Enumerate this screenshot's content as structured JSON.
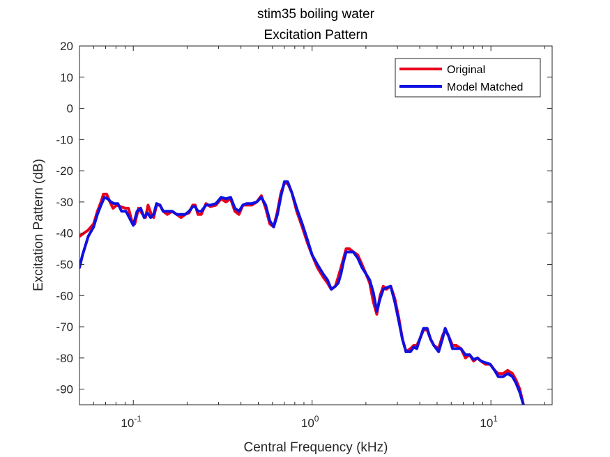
{
  "chart_data": {
    "type": "line",
    "title": "stim35 boiling water",
    "subtitle": "Excitation Pattern",
    "xlabel": "Central Frequency (kHz)",
    "ylabel": "Excitation Pattern (dB)",
    "xscale": "log",
    "xlim": [
      0.05,
      22
    ],
    "ylim": [
      -95,
      20
    ],
    "yticks": [
      20,
      10,
      0,
      -10,
      -20,
      -30,
      -40,
      -50,
      -60,
      -70,
      -80,
      -90
    ],
    "xticks": [
      {
        "value": 0.1,
        "base": "10",
        "exp": "-1"
      },
      {
        "value": 1,
        "base": "10",
        "exp": "0"
      },
      {
        "value": 10,
        "base": "10",
        "exp": "1"
      }
    ],
    "grid": false,
    "legend_position": "top-right",
    "series": [
      {
        "name": "Original",
        "color": "#e8001c",
        "points": [
          [
            0.05,
            -41
          ],
          [
            0.056,
            -39
          ],
          [
            0.06,
            -37
          ],
          [
            0.063,
            -33
          ],
          [
            0.066,
            -30
          ],
          [
            0.068,
            -27.5
          ],
          [
            0.071,
            -27.5
          ],
          [
            0.074,
            -30
          ],
          [
            0.077,
            -32
          ],
          [
            0.081,
            -31
          ],
          [
            0.085,
            -31.5
          ],
          [
            0.09,
            -32
          ],
          [
            0.094,
            -32
          ],
          [
            0.098,
            -36
          ],
          [
            0.102,
            -37
          ],
          [
            0.107,
            -32
          ],
          [
            0.113,
            -34
          ],
          [
            0.117,
            -35
          ],
          [
            0.121,
            -31
          ],
          [
            0.126,
            -34
          ],
          [
            0.13,
            -35
          ],
          [
            0.135,
            -31
          ],
          [
            0.141,
            -31
          ],
          [
            0.147,
            -33
          ],
          [
            0.155,
            -34
          ],
          [
            0.165,
            -33
          ],
          [
            0.175,
            -34
          ],
          [
            0.185,
            -35
          ],
          [
            0.195,
            -34
          ],
          [
            0.205,
            -33.5
          ],
          [
            0.215,
            -31
          ],
          [
            0.222,
            -31
          ],
          [
            0.23,
            -34
          ],
          [
            0.24,
            -34
          ],
          [
            0.255,
            -30.5
          ],
          [
            0.27,
            -31.5
          ],
          [
            0.29,
            -31
          ],
          [
            0.31,
            -29
          ],
          [
            0.33,
            -30
          ],
          [
            0.35,
            -29
          ],
          [
            0.37,
            -33
          ],
          [
            0.39,
            -34
          ],
          [
            0.41,
            -31
          ],
          [
            0.43,
            -31
          ],
          [
            0.46,
            -31
          ],
          [
            0.49,
            -30
          ],
          [
            0.52,
            -28
          ],
          [
            0.55,
            -32
          ],
          [
            0.58,
            -37
          ],
          [
            0.61,
            -38
          ],
          [
            0.64,
            -33
          ],
          [
            0.67,
            -27
          ],
          [
            0.7,
            -24
          ],
          [
            0.73,
            -24
          ],
          [
            0.77,
            -27
          ],
          [
            0.82,
            -33
          ],
          [
            0.88,
            -38
          ],
          [
            0.94,
            -43
          ],
          [
            1.0,
            -47
          ],
          [
            1.07,
            -51
          ],
          [
            1.15,
            -54
          ],
          [
            1.22,
            -56
          ],
          [
            1.28,
            -58
          ],
          [
            1.35,
            -57
          ],
          [
            1.4,
            -54
          ],
          [
            1.45,
            -51
          ],
          [
            1.5,
            -48
          ],
          [
            1.55,
            -45
          ],
          [
            1.62,
            -45
          ],
          [
            1.7,
            -46
          ],
          [
            1.8,
            -47
          ],
          [
            1.9,
            -50
          ],
          [
            2.0,
            -53
          ],
          [
            2.1,
            -56
          ],
          [
            2.2,
            -62
          ],
          [
            2.3,
            -66
          ],
          [
            2.4,
            -60
          ],
          [
            2.5,
            -57
          ],
          [
            2.6,
            -58
          ],
          [
            2.75,
            -57
          ],
          [
            2.9,
            -61
          ],
          [
            3.05,
            -67
          ],
          [
            3.2,
            -74
          ],
          [
            3.35,
            -78
          ],
          [
            3.55,
            -77
          ],
          [
            3.7,
            -76
          ],
          [
            3.85,
            -76
          ],
          [
            4.0,
            -74
          ],
          [
            4.2,
            -71
          ],
          [
            4.4,
            -71
          ],
          [
            4.6,
            -74
          ],
          [
            4.8,
            -76
          ],
          [
            5.1,
            -77
          ],
          [
            5.35,
            -73
          ],
          [
            5.55,
            -71
          ],
          [
            5.8,
            -73
          ],
          [
            6.1,
            -76
          ],
          [
            6.4,
            -76
          ],
          [
            6.8,
            -77
          ],
          [
            7.2,
            -80
          ],
          [
            7.6,
            -79
          ],
          [
            8.0,
            -81
          ],
          [
            8.4,
            -80
          ],
          [
            8.8,
            -81
          ],
          [
            9.3,
            -82
          ],
          [
            9.9,
            -82
          ],
          [
            10.5,
            -84
          ],
          [
            11.0,
            -85
          ],
          [
            11.7,
            -85
          ],
          [
            12.4,
            -84
          ],
          [
            13.2,
            -85
          ],
          [
            13.8,
            -87
          ],
          [
            14.5,
            -90
          ],
          [
            15.2,
            -95
          ]
        ]
      },
      {
        "name": "Model Matched",
        "color": "#1010e0",
        "points": [
          [
            0.05,
            -51
          ],
          [
            0.052,
            -47
          ],
          [
            0.056,
            -41
          ],
          [
            0.06,
            -38
          ],
          [
            0.063,
            -34
          ],
          [
            0.066,
            -31
          ],
          [
            0.069,
            -28.5
          ],
          [
            0.072,
            -29
          ],
          [
            0.075,
            -30
          ],
          [
            0.078,
            -30.5
          ],
          [
            0.082,
            -30.5
          ],
          [
            0.086,
            -33
          ],
          [
            0.091,
            -33
          ],
          [
            0.095,
            -35
          ],
          [
            0.1,
            -37.5
          ],
          [
            0.105,
            -33
          ],
          [
            0.11,
            -32
          ],
          [
            0.115,
            -35
          ],
          [
            0.12,
            -33.5
          ],
          [
            0.125,
            -35
          ],
          [
            0.13,
            -34
          ],
          [
            0.135,
            -30.5
          ],
          [
            0.141,
            -31
          ],
          [
            0.147,
            -33
          ],
          [
            0.155,
            -33
          ],
          [
            0.165,
            -33
          ],
          [
            0.175,
            -34
          ],
          [
            0.185,
            -34
          ],
          [
            0.195,
            -34
          ],
          [
            0.205,
            -33
          ],
          [
            0.215,
            -31.5
          ],
          [
            0.222,
            -31.5
          ],
          [
            0.23,
            -33
          ],
          [
            0.24,
            -33
          ],
          [
            0.255,
            -31
          ],
          [
            0.27,
            -31
          ],
          [
            0.29,
            -30.5
          ],
          [
            0.31,
            -28.5
          ],
          [
            0.33,
            -29
          ],
          [
            0.35,
            -28.5
          ],
          [
            0.37,
            -32
          ],
          [
            0.39,
            -33
          ],
          [
            0.41,
            -31
          ],
          [
            0.43,
            -30.5
          ],
          [
            0.46,
            -30.5
          ],
          [
            0.49,
            -30
          ],
          [
            0.52,
            -28.5
          ],
          [
            0.55,
            -31
          ],
          [
            0.58,
            -36
          ],
          [
            0.61,
            -38
          ],
          [
            0.64,
            -34
          ],
          [
            0.67,
            -28
          ],
          [
            0.7,
            -23.5
          ],
          [
            0.73,
            -23.5
          ],
          [
            0.77,
            -27
          ],
          [
            0.82,
            -32
          ],
          [
            0.88,
            -37
          ],
          [
            0.94,
            -42
          ],
          [
            1.0,
            -47
          ],
          [
            1.07,
            -50
          ],
          [
            1.15,
            -53
          ],
          [
            1.22,
            -55
          ],
          [
            1.28,
            -58
          ],
          [
            1.35,
            -57
          ],
          [
            1.4,
            -56
          ],
          [
            1.45,
            -53
          ],
          [
            1.5,
            -49
          ],
          [
            1.55,
            -46
          ],
          [
            1.62,
            -46
          ],
          [
            1.7,
            -46
          ],
          [
            1.8,
            -48
          ],
          [
            1.9,
            -51
          ],
          [
            2.0,
            -53
          ],
          [
            2.1,
            -55
          ],
          [
            2.2,
            -59
          ],
          [
            2.3,
            -65
          ],
          [
            2.4,
            -61
          ],
          [
            2.5,
            -58
          ],
          [
            2.6,
            -57.5
          ],
          [
            2.75,
            -57
          ],
          [
            2.9,
            -62
          ],
          [
            3.05,
            -68
          ],
          [
            3.2,
            -74
          ],
          [
            3.35,
            -78
          ],
          [
            3.55,
            -78
          ],
          [
            3.7,
            -76.5
          ],
          [
            3.85,
            -77
          ],
          [
            4.0,
            -74
          ],
          [
            4.2,
            -70.5
          ],
          [
            4.4,
            -70.5
          ],
          [
            4.6,
            -74
          ],
          [
            4.8,
            -76
          ],
          [
            5.1,
            -78
          ],
          [
            5.35,
            -74
          ],
          [
            5.55,
            -70.5
          ],
          [
            5.8,
            -73
          ],
          [
            6.1,
            -77
          ],
          [
            6.4,
            -77
          ],
          [
            6.8,
            -77
          ],
          [
            7.2,
            -79
          ],
          [
            7.6,
            -79
          ],
          [
            8.0,
            -80.5
          ],
          [
            8.4,
            -80
          ],
          [
            8.8,
            -81
          ],
          [
            9.3,
            -81.5
          ],
          [
            9.9,
            -82
          ],
          [
            10.5,
            -84
          ],
          [
            11.0,
            -86
          ],
          [
            11.7,
            -86
          ],
          [
            12.4,
            -85
          ],
          [
            13.2,
            -86
          ],
          [
            13.8,
            -88
          ],
          [
            14.5,
            -91
          ],
          [
            15.2,
            -95
          ]
        ]
      }
    ]
  }
}
